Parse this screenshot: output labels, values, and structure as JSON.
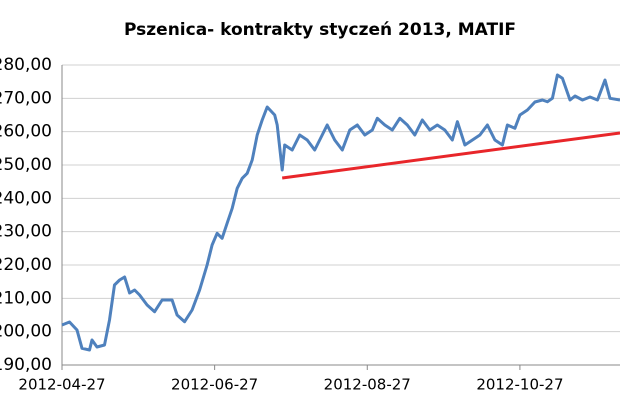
{
  "chart_data": {
    "type": "line",
    "title": "Pszenica- kontrakty styczeń 2013, MATIF",
    "x": [
      "2012-04-27",
      "2012-04-30",
      "2012-05-03",
      "2012-05-05",
      "2012-05-08",
      "2012-05-09",
      "2012-05-11",
      "2012-05-14",
      "2012-05-16",
      "2012-05-18",
      "2012-05-20",
      "2012-05-22",
      "2012-05-24",
      "2012-05-26",
      "2012-05-28",
      "2012-05-31",
      "2012-06-03",
      "2012-06-06",
      "2012-06-10",
      "2012-06-12",
      "2012-06-15",
      "2012-06-18",
      "2012-06-21",
      "2012-06-24",
      "2012-06-26",
      "2012-06-28",
      "2012-06-30",
      "2012-07-02",
      "2012-07-04",
      "2012-07-06",
      "2012-07-08",
      "2012-07-10",
      "2012-07-12",
      "2012-07-14",
      "2012-07-16",
      "2012-07-18",
      "2012-07-21",
      "2012-07-22",
      "2012-07-24",
      "2012-07-25",
      "2012-07-28",
      "2012-07-31",
      "2012-08-03",
      "2012-08-06",
      "2012-08-08",
      "2012-08-11",
      "2012-08-14",
      "2012-08-17",
      "2012-08-20",
      "2012-08-23",
      "2012-08-26",
      "2012-08-29",
      "2012-08-31",
      "2012-09-03",
      "2012-09-06",
      "2012-09-09",
      "2012-09-12",
      "2012-09-15",
      "2012-09-18",
      "2012-09-21",
      "2012-09-24",
      "2012-09-27",
      "2012-09-30",
      "2012-10-02",
      "2012-10-05",
      "2012-10-08",
      "2012-10-11",
      "2012-10-14",
      "2012-10-17",
      "2012-10-20",
      "2012-10-22",
      "2012-10-25",
      "2012-10-27",
      "2012-10-30",
      "2012-11-02",
      "2012-11-05",
      "2012-11-07",
      "2012-11-09",
      "2012-11-11",
      "2012-11-13",
      "2012-11-16",
      "2012-11-18",
      "2012-11-21",
      "2012-11-24",
      "2012-11-27",
      "2012-11-30",
      "2012-12-02",
      "2012-12-06"
    ],
    "series": [
      {
        "color": "#4f81bd",
        "values": [
          202.0,
          202.9,
          200.5,
          195,
          194.5,
          197.5,
          195.4,
          196,
          203.5,
          214,
          215.5,
          216.4,
          211.6,
          212.5,
          211,
          208,
          206,
          209.5,
          209.5,
          205,
          203,
          206.5,
          212.5,
          220,
          226,
          229.5,
          228,
          232.5,
          237,
          243,
          246,
          247.5,
          251.5,
          259,
          263.5,
          267.4,
          265,
          262,
          248.5,
          256,
          254.5,
          259,
          257.5,
          254.5,
          257.5,
          262,
          257.5,
          254.5,
          260.5,
          262,
          259,
          260.5,
          264,
          262,
          260.5,
          264,
          262,
          259,
          263.5,
          260.5,
          262,
          260.5,
          257.5,
          263,
          256,
          257.5,
          259,
          262,
          257.5,
          256,
          262,
          261,
          265,
          266.5,
          268.9,
          269.5,
          269,
          270,
          277,
          276,
          269.5,
          270.7,
          269.5,
          270.4,
          269.5,
          275.5,
          270,
          269.5
        ]
      },
      {
        "color": "#e8262a",
        "x": [
          "2012-07-24",
          "2012-12-06"
        ],
        "values": [
          246.1,
          259.6
        ]
      }
    ],
    "xlim": [
      "2012-04-27",
      "2012-12-06"
    ],
    "xticks": [
      "2012-04-27",
      "2012-06-27",
      "2012-08-27",
      "2012-10-27"
    ],
    "ylim": [
      190,
      280
    ],
    "yticks": [
      {
        "value": 190,
        "label": "190,00"
      },
      {
        "value": 200,
        "label": "200,00"
      },
      {
        "value": 210,
        "label": "210,00"
      },
      {
        "value": 220,
        "label": "220,00"
      },
      {
        "value": 230,
        "label": "230,00"
      },
      {
        "value": 240,
        "label": "240,00"
      },
      {
        "value": 250,
        "label": "250,00"
      },
      {
        "value": 260,
        "label": "260,00"
      },
      {
        "value": 270,
        "label": "270,00"
      },
      {
        "value": 280,
        "label": "280,00"
      }
    ],
    "grid": true
  }
}
